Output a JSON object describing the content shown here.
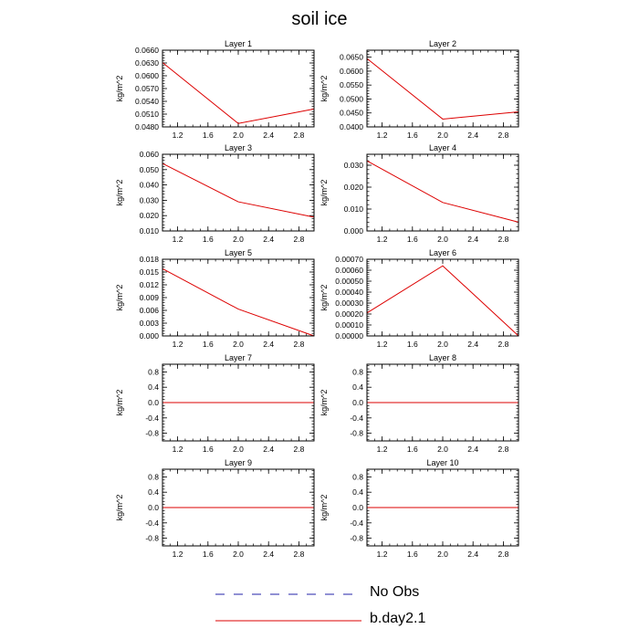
{
  "figure": {
    "title": "soil ice",
    "legend": [
      {
        "label": "No Obs",
        "color": "#2222aa",
        "style": "dashed"
      },
      {
        "label": "b.day2.1",
        "color": "#dd0000",
        "style": "solid"
      }
    ]
  },
  "chart_data": [
    {
      "type": "line",
      "title": "Layer 1",
      "ylabel": "kg/m^2",
      "xlim": [
        1,
        3
      ],
      "xticks": [
        "1.2",
        "1.6",
        "2.0",
        "2.4",
        "2.8"
      ],
      "ylim": [
        0.048,
        0.066
      ],
      "yticks": [
        "0.0480",
        "0.0510",
        "0.0540",
        "0.0570",
        "0.0600",
        "0.0630",
        "0.0660"
      ],
      "series": [
        {
          "name": "b.day2.1",
          "x": [
            1,
            2,
            3
          ],
          "y": [
            0.0631,
            0.0488,
            0.0522
          ],
          "color": "#dd0000"
        }
      ]
    },
    {
      "type": "line",
      "title": "Layer 2",
      "ylabel": "kg/m^2",
      "xlim": [
        1,
        3
      ],
      "xticks": [
        "1.2",
        "1.6",
        "2.0",
        "2.4",
        "2.8"
      ],
      "ylim": [
        0.04,
        0.0675
      ],
      "yticks": [
        "0.0400",
        "0.0450",
        "0.0500",
        "0.0550",
        "0.0600",
        "0.0650"
      ],
      "series": [
        {
          "name": "b.day2.1",
          "x": [
            1,
            2,
            3
          ],
          "y": [
            0.0645,
            0.0428,
            0.0454
          ],
          "color": "#dd0000"
        }
      ]
    },
    {
      "type": "line",
      "title": "Layer 3",
      "ylabel": "kg/m^2",
      "xlim": [
        1,
        3
      ],
      "xticks": [
        "1.2",
        "1.6",
        "2.0",
        "2.4",
        "2.8"
      ],
      "ylim": [
        0.01,
        0.06
      ],
      "yticks": [
        "0.010",
        "0.020",
        "0.030",
        "0.040",
        "0.050",
        "0.060"
      ],
      "series": [
        {
          "name": "b.day2.1",
          "x": [
            1,
            2,
            3
          ],
          "y": [
            0.054,
            0.029,
            0.019
          ],
          "color": "#dd0000"
        }
      ]
    },
    {
      "type": "line",
      "title": "Layer 4",
      "ylabel": "kg/m^2",
      "xlim": [
        1,
        3
      ],
      "xticks": [
        "1.2",
        "1.6",
        "2.0",
        "2.4",
        "2.8"
      ],
      "ylim": [
        0,
        0.035
      ],
      "yticks": [
        "0.000",
        "0.010",
        "0.020",
        "0.030"
      ],
      "series": [
        {
          "name": "b.day2.1",
          "x": [
            1,
            2,
            3
          ],
          "y": [
            0.032,
            0.013,
            0.004
          ],
          "color": "#dd0000"
        }
      ]
    },
    {
      "type": "line",
      "title": "Layer 5",
      "ylabel": "kg/m^2",
      "xlim": [
        1,
        3
      ],
      "xticks": [
        "1.2",
        "1.6",
        "2.0",
        "2.4",
        "2.8"
      ],
      "ylim": [
        0,
        0.018
      ],
      "yticks": [
        "0.000",
        "0.003",
        "0.006",
        "0.009",
        "0.012",
        "0.015",
        "0.018"
      ],
      "series": [
        {
          "name": "b.day2.1",
          "x": [
            1,
            2,
            3
          ],
          "y": [
            0.0158,
            0.0063,
            0.0
          ],
          "color": "#dd0000"
        }
      ]
    },
    {
      "type": "line",
      "title": "Layer 6",
      "ylabel": "kg/m^2",
      "xlim": [
        1,
        3
      ],
      "xticks": [
        "1.2",
        "1.6",
        "2.0",
        "2.4",
        "2.8"
      ],
      "ylim": [
        0,
        0.0007
      ],
      "yticks": [
        "0.00000",
        "0.00010",
        "0.00020",
        "0.00030",
        "0.00040",
        "0.00050",
        "0.00060",
        "0.00070"
      ],
      "series": [
        {
          "name": "b.day2.1",
          "x": [
            1,
            2,
            3
          ],
          "y": [
            0.00021,
            0.00064,
            0.0
          ],
          "color": "#dd0000"
        }
      ]
    },
    {
      "type": "line",
      "title": "Layer 7",
      "ylabel": "kg/m^2",
      "xlim": [
        1,
        3
      ],
      "xticks": [
        "1.2",
        "1.6",
        "2.0",
        "2.4",
        "2.8"
      ],
      "ylim": [
        -1,
        1
      ],
      "yticks": [
        "-0.8",
        "-0.4",
        "0.0",
        "0.4",
        "0.8"
      ],
      "series": [
        {
          "name": "b.day2.1",
          "x": [
            1,
            2,
            3
          ],
          "y": [
            0,
            0,
            0
          ],
          "color": "#dd0000"
        }
      ]
    },
    {
      "type": "line",
      "title": "Layer 8",
      "ylabel": "kg/m^2",
      "xlim": [
        1,
        3
      ],
      "xticks": [
        "1.2",
        "1.6",
        "2.0",
        "2.4",
        "2.8"
      ],
      "ylim": [
        -1,
        1
      ],
      "yticks": [
        "-0.8",
        "-0.4",
        "0.0",
        "0.4",
        "0.8"
      ],
      "series": [
        {
          "name": "b.day2.1",
          "x": [
            1,
            2,
            3
          ],
          "y": [
            0,
            0,
            0
          ],
          "color": "#dd0000"
        }
      ]
    },
    {
      "type": "line",
      "title": "Layer 9",
      "ylabel": "kg/m^2",
      "xlim": [
        1,
        3
      ],
      "xticks": [
        "1.2",
        "1.6",
        "2.0",
        "2.4",
        "2.8"
      ],
      "ylim": [
        -1,
        1
      ],
      "yticks": [
        "-0.8",
        "-0.4",
        "0.0",
        "0.4",
        "0.8"
      ],
      "series": [
        {
          "name": "b.day2.1",
          "x": [
            1,
            2,
            3
          ],
          "y": [
            0,
            0,
            0
          ],
          "color": "#dd0000"
        }
      ]
    },
    {
      "type": "line",
      "title": "Layer 10",
      "ylabel": "kg/m^2",
      "xlim": [
        1,
        3
      ],
      "xticks": [
        "1.2",
        "1.6",
        "2.0",
        "2.4",
        "2.8"
      ],
      "ylim": [
        -1,
        1
      ],
      "yticks": [
        "-0.8",
        "-0.4",
        "0.0",
        "0.4",
        "0.8"
      ],
      "series": [
        {
          "name": "b.day2.1",
          "x": [
            1,
            2,
            3
          ],
          "y": [
            0,
            0,
            0
          ],
          "color": "#dd0000"
        }
      ]
    }
  ]
}
